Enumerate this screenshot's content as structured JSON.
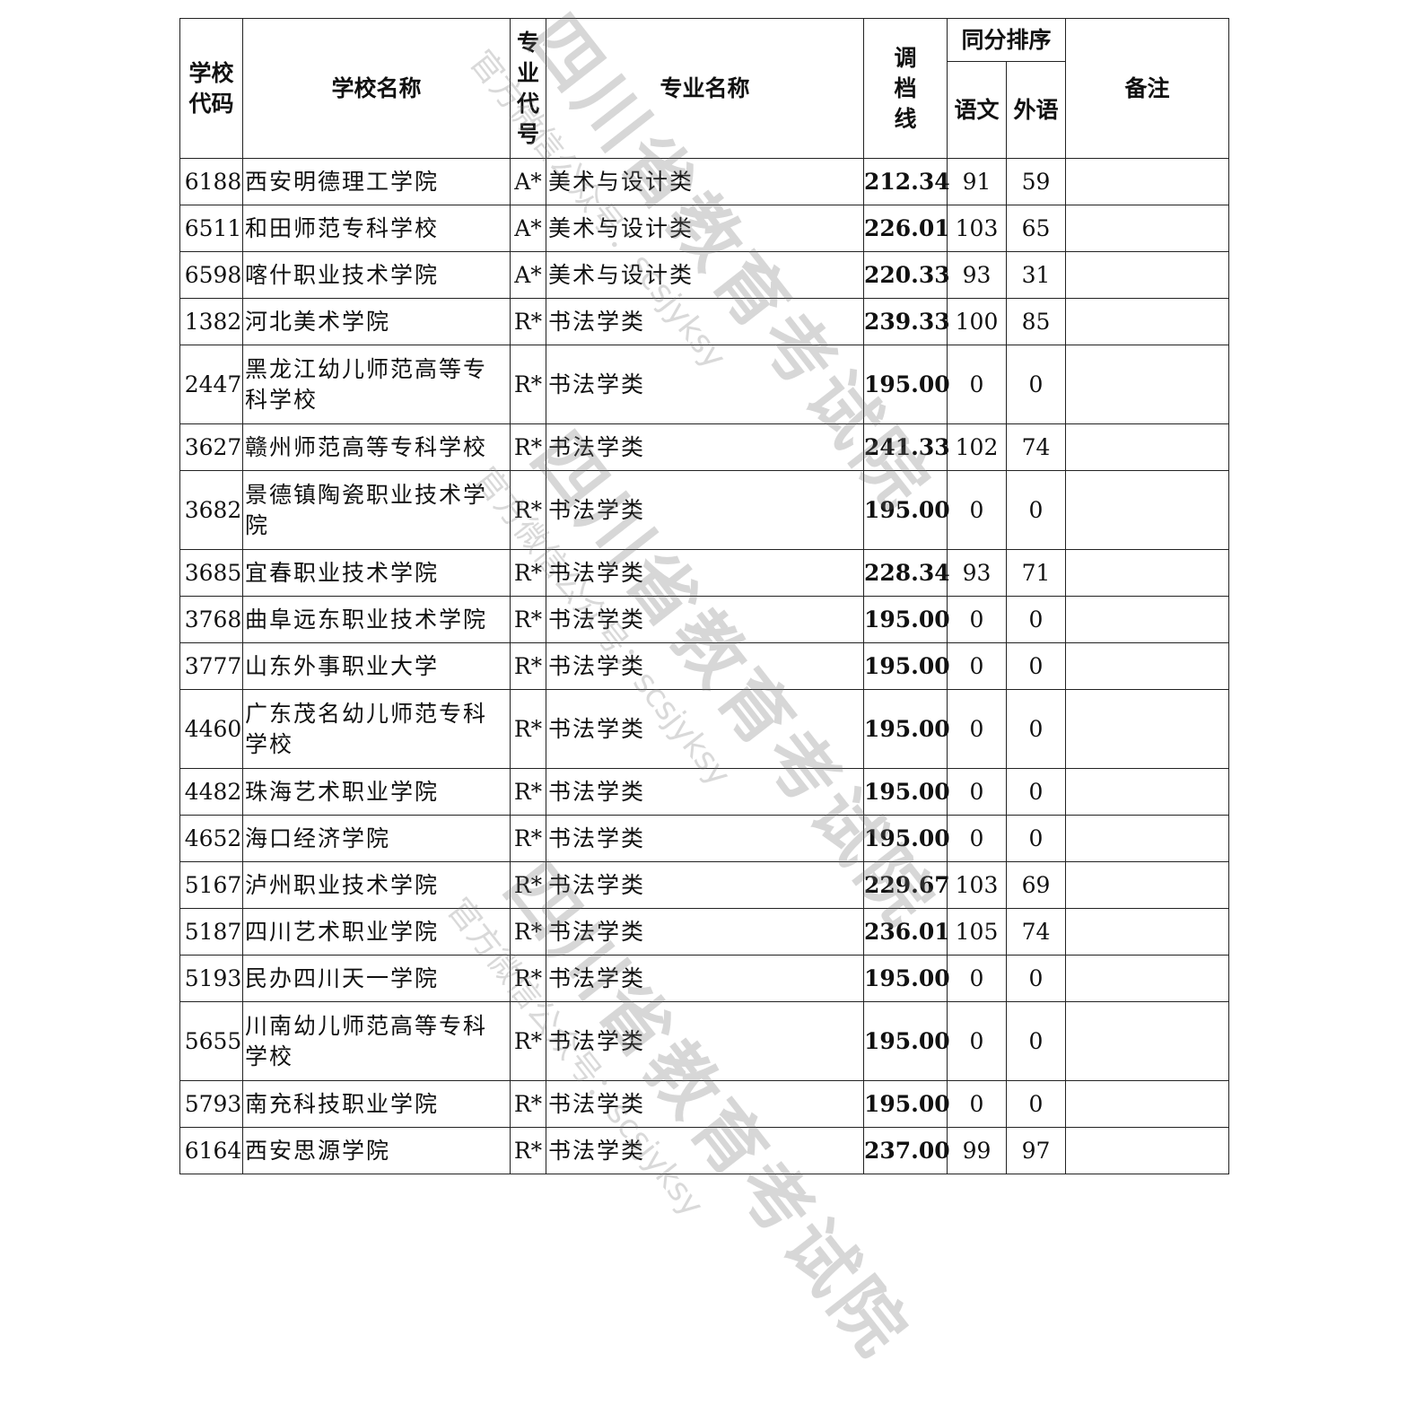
{
  "header": {
    "school_code": "学校代码",
    "school_code_l1": "学校",
    "school_code_l2": "代码",
    "school_name": "学校名称",
    "major_code_chars": [
      "专",
      "业",
      "代",
      "号"
    ],
    "major_name": "专业名称",
    "cutoff_chars": [
      "调",
      "档",
      "线"
    ],
    "tie_rank": "同分排序",
    "chinese": "语文",
    "foreign": "外语",
    "remark": "备注"
  },
  "rows": [
    {
      "code": "6188",
      "name": "西安明德理工学院",
      "mcode": "A*",
      "mname": "美术与设计类",
      "score": "212.34",
      "chinese": "91",
      "foreign": "59",
      "remark": ""
    },
    {
      "code": "6511",
      "name": "和田师范专科学校",
      "mcode": "A*",
      "mname": "美术与设计类",
      "score": "226.01",
      "chinese": "103",
      "foreign": "65",
      "remark": ""
    },
    {
      "code": "6598",
      "name": "喀什职业技术学院",
      "mcode": "A*",
      "mname": "美术与设计类",
      "score": "220.33",
      "chinese": "93",
      "foreign": "31",
      "remark": ""
    },
    {
      "code": "1382",
      "name": "河北美术学院",
      "mcode": "R*",
      "mname": "书法学类",
      "score": "239.33",
      "chinese": "100",
      "foreign": "85",
      "remark": ""
    },
    {
      "code": "2447",
      "name": "黑龙江幼儿师范高等专科学校",
      "mcode": "R*",
      "mname": "书法学类",
      "score": "195.00",
      "chinese": "0",
      "foreign": "0",
      "remark": ""
    },
    {
      "code": "3627",
      "name": "赣州师范高等专科学校",
      "mcode": "R*",
      "mname": "书法学类",
      "score": "241.33",
      "chinese": "102",
      "foreign": "74",
      "remark": ""
    },
    {
      "code": "3682",
      "name": "景德镇陶瓷职业技术学院",
      "mcode": "R*",
      "mname": "书法学类",
      "score": "195.00",
      "chinese": "0",
      "foreign": "0",
      "remark": ""
    },
    {
      "code": "3685",
      "name": "宜春职业技术学院",
      "mcode": "R*",
      "mname": "书法学类",
      "score": "228.34",
      "chinese": "93",
      "foreign": "71",
      "remark": ""
    },
    {
      "code": "3768",
      "name": "曲阜远东职业技术学院",
      "mcode": "R*",
      "mname": "书法学类",
      "score": "195.00",
      "chinese": "0",
      "foreign": "0",
      "remark": ""
    },
    {
      "code": "3777",
      "name": "山东外事职业大学",
      "mcode": "R*",
      "mname": "书法学类",
      "score": "195.00",
      "chinese": "0",
      "foreign": "0",
      "remark": ""
    },
    {
      "code": "4460",
      "name": "广东茂名幼儿师范专科学校",
      "mcode": "R*",
      "mname": "书法学类",
      "score": "195.00",
      "chinese": "0",
      "foreign": "0",
      "remark": ""
    },
    {
      "code": "4482",
      "name": "珠海艺术职业学院",
      "mcode": "R*",
      "mname": "书法学类",
      "score": "195.00",
      "chinese": "0",
      "foreign": "0",
      "remark": ""
    },
    {
      "code": "4652",
      "name": "海口经济学院",
      "mcode": "R*",
      "mname": "书法学类",
      "score": "195.00",
      "chinese": "0",
      "foreign": "0",
      "remark": ""
    },
    {
      "code": "5167",
      "name": "泸州职业技术学院",
      "mcode": "R*",
      "mname": "书法学类",
      "score": "229.67",
      "chinese": "103",
      "foreign": "69",
      "remark": ""
    },
    {
      "code": "5187",
      "name": "四川艺术职业学院",
      "mcode": "R*",
      "mname": "书法学类",
      "score": "236.01",
      "chinese": "105",
      "foreign": "74",
      "remark": ""
    },
    {
      "code": "5193",
      "name": "民办四川天一学院",
      "mcode": "R*",
      "mname": "书法学类",
      "score": "195.00",
      "chinese": "0",
      "foreign": "0",
      "remark": ""
    },
    {
      "code": "5655",
      "name": "川南幼儿师范高等专科学校",
      "mcode": "R*",
      "mname": "书法学类",
      "score": "195.00",
      "chinese": "0",
      "foreign": "0",
      "remark": ""
    },
    {
      "code": "5793",
      "name": "南充科技职业学院",
      "mcode": "R*",
      "mname": "书法学类",
      "score": "195.00",
      "chinese": "0",
      "foreign": "0",
      "remark": ""
    },
    {
      "code": "6164",
      "name": "西安思源学院",
      "mcode": "R*",
      "mname": "书法学类",
      "score": "237.00",
      "chinese": "99",
      "foreign": "97",
      "remark": ""
    }
  ],
  "watermark": {
    "title": "四川省教育考试院",
    "subtitle": "官方微信公众号：scsjyksy"
  }
}
